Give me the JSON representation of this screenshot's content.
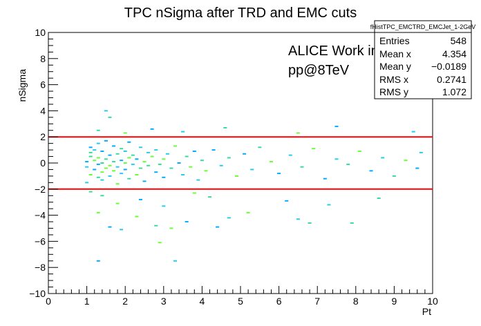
{
  "chart_data": {
    "type": "heatmap",
    "title": "TPC nSigma after TRD and EMC cuts",
    "xlabel": "Pt",
    "ylabel": "nSigma",
    "xlim": [
      0,
      10
    ],
    "ylim": [
      -10,
      10
    ],
    "x_ticks": [
      "0",
      "1",
      "2",
      "3",
      "4",
      "5",
      "6",
      "7",
      "8",
      "9",
      "10"
    ],
    "y_ticks": [
      "−10",
      "−8",
      "−6",
      "−4",
      "−2",
      "0",
      "2",
      "4",
      "6",
      "8",
      "10"
    ],
    "cut_lines": [
      2,
      -2
    ],
    "cut_line_color": "#ff0000",
    "annotations": [
      "ALICE Work in Progress",
      "pp@8TeV"
    ],
    "stats_box": {
      "name": "fHistTPC_EMCTRD_EMCJet_1-2GeV",
      "rows": [
        {
          "label": "Entries",
          "value": "548"
        },
        {
          "label": "Mean x",
          "value": "4.354"
        },
        {
          "label": "Mean y",
          "value": "−0.0189"
        },
        {
          "label": "RMS x",
          "value": "0.2741"
        },
        {
          "label": "RMS y",
          "value": "1.072"
        }
      ]
    },
    "point_colors": [
      "#00aaff",
      "#22ccee",
      "#33dd99",
      "#66ff33"
    ],
    "scatter_points": [
      [
        1.0,
        0.1
      ],
      [
        1.0,
        -0.3
      ],
      [
        1.1,
        0.5
      ],
      [
        1.1,
        -0.9
      ],
      [
        1.1,
        1.2
      ],
      [
        1.0,
        -1.5
      ],
      [
        1.1,
        0.8
      ],
      [
        1.2,
        0.2
      ],
      [
        1.2,
        -0.5
      ],
      [
        1.2,
        1.0
      ],
      [
        1.3,
        -1.1
      ],
      [
        1.3,
        0.4
      ],
      [
        1.3,
        -0.1
      ],
      [
        1.3,
        1.5
      ],
      [
        1.4,
        0.0
      ],
      [
        1.4,
        -0.7
      ],
      [
        1.4,
        0.9
      ],
      [
        1.4,
        -1.3
      ],
      [
        1.5,
        0.3
      ],
      [
        1.5,
        -0.4
      ],
      [
        1.5,
        1.7
      ],
      [
        1.5,
        4.0
      ],
      [
        1.6,
        3.5
      ],
      [
        1.6,
        -0.2
      ],
      [
        1.6,
        0.6
      ],
      [
        1.6,
        -1.0
      ],
      [
        1.7,
        0.1
      ],
      [
        1.7,
        -0.6
      ],
      [
        1.7,
        1.3
      ],
      [
        1.8,
        -0.3
      ],
      [
        1.8,
        0.7
      ],
      [
        1.8,
        -1.6
      ],
      [
        1.9,
        0.2
      ],
      [
        1.9,
        -0.8
      ],
      [
        1.9,
        1.1
      ],
      [
        2.0,
        0.0
      ],
      [
        2.0,
        -0.5
      ],
      [
        2.0,
        0.9
      ],
      [
        2.1,
        -1.2
      ],
      [
        2.1,
        0.4
      ],
      [
        2.1,
        1.6
      ],
      [
        2.2,
        -0.1
      ],
      [
        2.2,
        0.6
      ],
      [
        2.3,
        -0.9
      ],
      [
        2.3,
        0.3
      ],
      [
        2.4,
        1.2
      ],
      [
        2.4,
        -0.4
      ],
      [
        2.5,
        0.1
      ],
      [
        2.5,
        -1.4
      ],
      [
        2.6,
        0.8
      ],
      [
        2.6,
        -0.2
      ],
      [
        2.7,
        0.5
      ],
      [
        2.8,
        -0.7
      ],
      [
        2.8,
        1.0
      ],
      [
        2.9,
        -0.1
      ],
      [
        3.0,
        0.3
      ],
      [
        3.0,
        -1.1
      ],
      [
        3.1,
        0.7
      ],
      [
        3.2,
        -0.4
      ],
      [
        3.3,
        1.3
      ],
      [
        3.4,
        0.0
      ],
      [
        3.5,
        -0.9
      ],
      [
        3.6,
        0.5
      ],
      [
        3.7,
        -0.3
      ],
      [
        3.8,
        0.9
      ],
      [
        3.9,
        -1.3
      ],
      [
        4.0,
        0.2
      ],
      [
        4.1,
        -0.6
      ],
      [
        4.3,
        1.0
      ],
      [
        4.5,
        -0.2
      ],
      [
        4.7,
        0.4
      ],
      [
        4.9,
        -1.0
      ],
      [
        5.1,
        0.7
      ],
      [
        5.3,
        -0.5
      ],
      [
        5.5,
        1.2
      ],
      [
        5.8,
        0.1
      ],
      [
        6.0,
        -0.8
      ],
      [
        6.3,
        0.6
      ],
      [
        6.6,
        -0.3
      ],
      [
        6.9,
        1.1
      ],
      [
        7.2,
        -1.2
      ],
      [
        7.5,
        0.3
      ],
      [
        7.8,
        -0.1
      ],
      [
        8.1,
        0.9
      ],
      [
        8.4,
        -0.6
      ],
      [
        8.7,
        0.4
      ],
      [
        9.0,
        -1.0
      ],
      [
        9.3,
        0.2
      ],
      [
        9.6,
        -0.4
      ],
      [
        9.7,
        0.8
      ],
      [
        1.3,
        2.5
      ],
      [
        2.0,
        2.3
      ],
      [
        2.7,
        2.6
      ],
      [
        3.5,
        2.4
      ],
      [
        4.6,
        2.7
      ],
      [
        6.5,
        2.3
      ],
      [
        7.5,
        2.8
      ],
      [
        9.5,
        2.4
      ],
      [
        1.4,
        -2.5
      ],
      [
        1.8,
        -3.1
      ],
      [
        2.4,
        -2.8
      ],
      [
        3.0,
        -3.3
      ],
      [
        4.2,
        -2.6
      ],
      [
        5.2,
        -3.8
      ],
      [
        6.2,
        -2.9
      ],
      [
        7.3,
        -3.2
      ],
      [
        8.6,
        -2.7
      ],
      [
        2.3,
        -4.1
      ],
      [
        3.6,
        -4.5
      ],
      [
        4.7,
        -4.2
      ],
      [
        6.8,
        -4.6
      ],
      [
        1.3,
        -3.8
      ],
      [
        1.6,
        -4.9
      ],
      [
        1.9,
        -5.1
      ],
      [
        2.8,
        -4.8
      ],
      [
        3.2,
        -5.0
      ],
      [
        4.4,
        -4.9
      ],
      [
        6.5,
        -4.3
      ],
      [
        7.9,
        -4.6
      ],
      [
        2.9,
        -6.1
      ],
      [
        1.3,
        -7.5
      ],
      [
        3.3,
        -7.5
      ],
      [
        1.1,
        -2.2
      ],
      [
        3.8,
        -2.3
      ]
    ]
  }
}
